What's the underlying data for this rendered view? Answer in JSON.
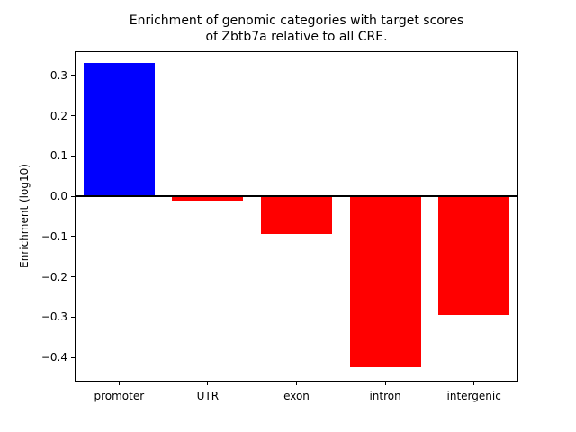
{
  "chart_data": {
    "type": "bar",
    "title_line1": "Enrichment of genomic categories with target scores",
    "title_line2": "of Zbtb7a relative to all CRE.",
    "ylabel": "Enrichment (log10)",
    "xlabel": "",
    "categories": [
      "promoter",
      "UTR",
      "exon",
      "intron",
      "intergenic"
    ],
    "values": [
      0.33,
      -0.012,
      -0.093,
      -0.425,
      -0.295
    ],
    "bar_colors": [
      "#0000ff",
      "#ff0000",
      "#ff0000",
      "#ff0000",
      "#ff0000"
    ],
    "positive_color": "#0000ff",
    "negative_color": "#ff0000",
    "ylim": [
      -0.46,
      0.36
    ],
    "yticks": [
      0.3,
      0.2,
      0.1,
      0.0,
      -0.1,
      -0.2,
      -0.3,
      -0.4
    ],
    "zero_line": true,
    "grid": false,
    "legend": null
  }
}
